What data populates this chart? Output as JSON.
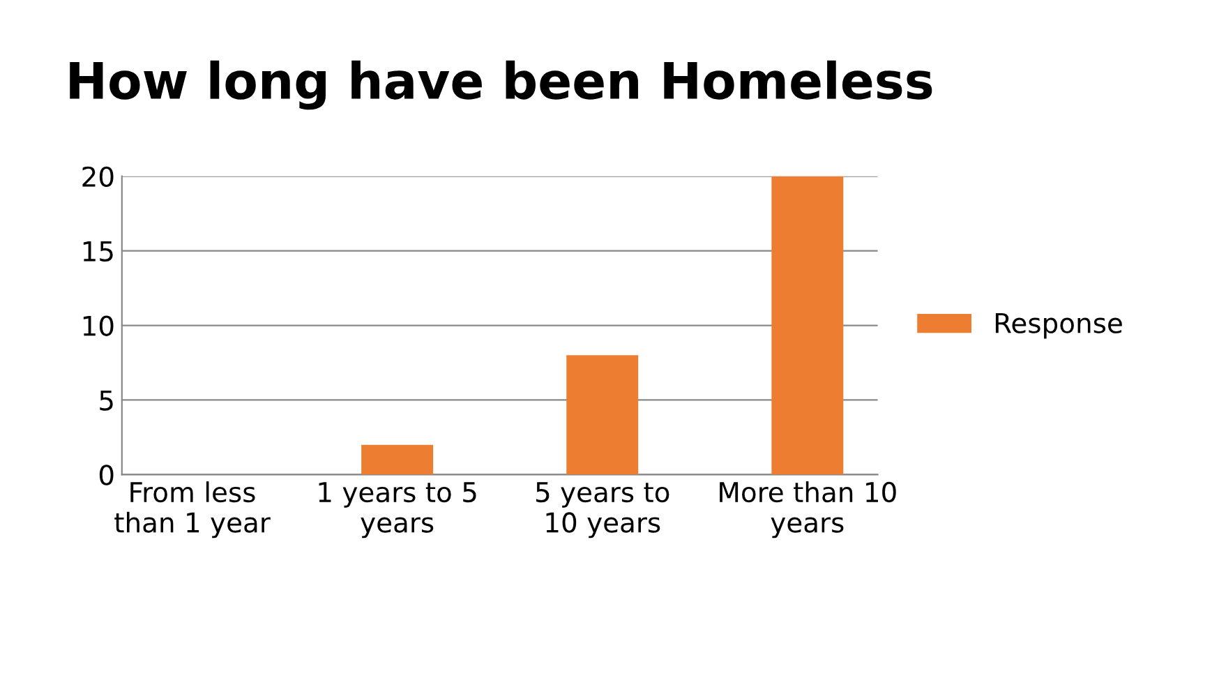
{
  "chart_data": {
    "type": "bar",
    "title": "How long have been Homeless",
    "categories": [
      "From less than 1 year",
      "1 years to 5 years",
      "5 years to 10 years",
      "More than 10 years"
    ],
    "series": [
      {
        "name": "Response",
        "color": "#ed7d31",
        "values": [
          0,
          2,
          8,
          20
        ]
      }
    ],
    "ylim": [
      0,
      20
    ],
    "yticks": [
      0,
      5,
      10,
      15,
      20
    ],
    "grid": "y",
    "legend": "right"
  }
}
